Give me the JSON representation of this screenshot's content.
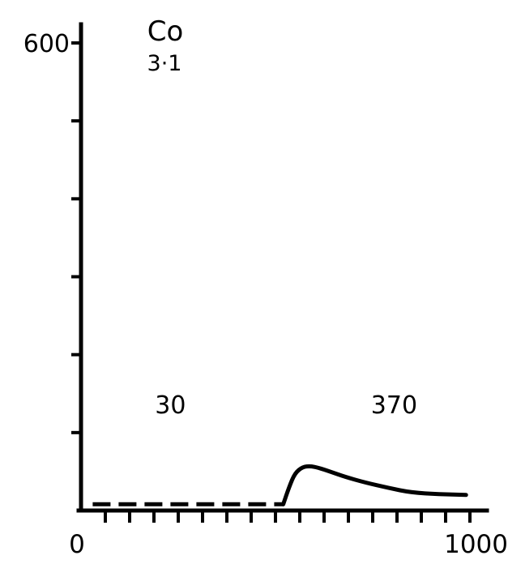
{
  "chart_data": {
    "type": "line",
    "title": "Co",
    "subtitle": "3·1",
    "xlabel": "",
    "ylabel": "",
    "xlim": [
      0,
      1000
    ],
    "ylim": [
      0,
      600
    ],
    "y_tick_values": [
      0,
      100,
      200,
      300,
      400,
      500,
      600
    ],
    "y_tick_labels": [
      {
        "value": 600,
        "text": "600"
      }
    ],
    "x_tick_values": [
      0,
      62.5,
      125,
      187.5,
      250,
      312.5,
      375,
      437.5,
      500,
      562.5,
      625,
      687.5,
      750,
      812.5,
      875,
      937.5,
      1000
    ],
    "x_tick_labels": [
      {
        "value": 0,
        "text": "0"
      },
      {
        "value": 1000,
        "text": "1000"
      }
    ],
    "annotations": [
      {
        "text": "30",
        "x": 230,
        "y": 135
      },
      {
        "text": "370",
        "x": 805,
        "y": 135
      }
    ],
    "series": [
      {
        "style": "dashed",
        "x": [
          30,
          520
        ],
        "y": [
          8,
          8
        ]
      },
      {
        "style": "solid",
        "x": [
          520,
          535,
          550,
          570,
          590,
          610,
          640,
          680,
          730,
          790,
          850,
          920,
          990
        ],
        "y": [
          8,
          30,
          48,
          56,
          57,
          55,
          50,
          43,
          36,
          29,
          23,
          21,
          20
        ]
      }
    ],
    "grid": false
  }
}
